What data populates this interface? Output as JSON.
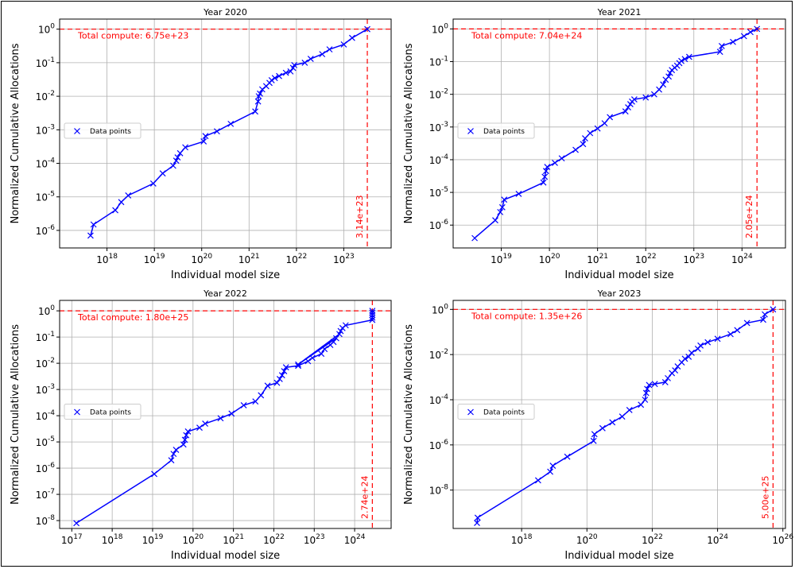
{
  "chart_data": [
    {
      "type": "line",
      "title": "Year 2020",
      "xlabel": "Individual model size",
      "ylabel": "Normalized Cumulative Allocations",
      "xscale": "log",
      "yscale": "log",
      "xlim": [
        1e+17,
        1e+24
      ],
      "ylim": [
        3e-07,
        2
      ],
      "xticks": [
        1e+18,
        1e+19,
        1e+20,
        1e+21,
        1e+22,
        1e+23
      ],
      "xtick_labels": [
        "10^18",
        "10^19",
        "10^20",
        "10^21",
        "10^22",
        "10^23"
      ],
      "yticks": [
        1e-06,
        1e-05,
        0.0001,
        0.001,
        0.01,
        0.1,
        1
      ],
      "ytick_labels": [
        "10^-6",
        "10^-5",
        "10^-4",
        "10^-3",
        "10^-2",
        "10^-1",
        "10^0"
      ],
      "grid": true,
      "legend_position": "center-left",
      "series": [
        {
          "name": "Data points",
          "color": "#0000ff",
          "marker": "x",
          "x": [
            4.5e+17,
            5.2e+17,
            1.5e+18,
            2e+18,
            2.8e+18,
            9.5e+18,
            1.5e+19,
            2.5e+19,
            2.9e+19,
            3.1e+19,
            3.5e+19,
            4.5e+19,
            1.1e+20,
            1.2e+20,
            2.1e+20,
            4.1e+20,
            1.35e+21,
            1.55e+21,
            1.6e+21,
            1.7e+21,
            1.9e+21,
            2.3e+21,
            2.7e+21,
            3e+21,
            3.5e+21,
            4.3e+21,
            6e+21,
            7.5e+21,
            8.5e+21,
            9e+21,
            1.5e+22,
            2e+22,
            3.5e+22,
            5e+22,
            1e+23,
            1.5e+23,
            3.14e+23
          ],
          "y": [
            7e-07,
            1.5e-06,
            4e-06,
            7e-06,
            1.1e-05,
            2.5e-05,
            5e-05,
            8.5e-05,
            0.00012,
            0.00015,
            0.0002,
            0.0003,
            0.00045,
            0.00065,
            0.0009,
            0.0015,
            0.0035,
            0.007,
            0.01,
            0.012,
            0.016,
            0.02,
            0.025,
            0.03,
            0.035,
            0.04,
            0.05,
            0.055,
            0.07,
            0.085,
            0.1,
            0.13,
            0.18,
            0.25,
            0.35,
            0.55,
            1
          ]
        }
      ],
      "hline": {
        "y": 1,
        "color": "#ff0000",
        "label": "Total compute: 6.75e+23"
      },
      "vline": {
        "x": 3.14e+23,
        "color": "#ff0000",
        "label": "3.14e+23"
      }
    },
    {
      "type": "line",
      "title": "Year 2021",
      "xlabel": "Individual model size",
      "ylabel": "Normalized Cumulative Allocations",
      "xscale": "log",
      "yscale": "log",
      "xlim": [
        1e+18,
        8e+24
      ],
      "ylim": [
        2e-07,
        2
      ],
      "xticks": [
        1e+19,
        1e+20,
        1e+21,
        1e+22,
        1e+23,
        1e+24
      ],
      "xtick_labels": [
        "10^19",
        "10^20",
        "10^21",
        "10^22",
        "10^23",
        "10^24"
      ],
      "yticks": [
        1e-06,
        1e-05,
        0.0001,
        0.001,
        0.01,
        0.1,
        1
      ],
      "ytick_labels": [
        "10^-6",
        "10^-5",
        "10^-4",
        "10^-3",
        "10^-2",
        "10^-1",
        "10^0"
      ],
      "grid": true,
      "legend_position": "center-left",
      "series": [
        {
          "name": "Data points",
          "color": "#0000ff",
          "marker": "x",
          "x": [
            2.8e+18,
            7.5e+18,
            9.5e+18,
            1.05e+19,
            1.15e+19,
            2.3e+19,
            7.5e+19,
            8e+19,
            8.5e+19,
            9e+19,
            1.3e+20,
            1.8e+20,
            3.5e+20,
            5e+20,
            5.5e+20,
            7e+20,
            1e+21,
            1.4e+21,
            1.8e+21,
            3.8e+21,
            4.3e+21,
            4.8e+21,
            5.2e+21,
            5.8e+21,
            1e+22,
            1.5e+22,
            1.9e+22,
            2.3e+22,
            2.6e+22,
            3e+22,
            3.2e+22,
            3.5e+22,
            4e+22,
            4.5e+22,
            5e+22,
            5.5e+22,
            6.5e+22,
            8e+22,
            3.5e+23,
            3.8e+23,
            6.5e+23,
            1.1e+24,
            1.5e+24,
            2.05e+24
          ],
          "y": [
            4e-07,
            1.4e-06,
            2.5e-06,
            3.5e-06,
            6e-06,
            9e-06,
            2e-05,
            3e-05,
            4.5e-05,
            6e-05,
            8e-05,
            0.00011,
            0.0002,
            0.0003,
            0.00045,
            0.00065,
            0.0009,
            0.0013,
            0.002,
            0.003,
            0.004,
            0.005,
            0.006,
            0.007,
            0.008,
            0.01,
            0.014,
            0.02,
            0.028,
            0.035,
            0.045,
            0.055,
            0.065,
            0.075,
            0.09,
            0.105,
            0.12,
            0.14,
            0.2,
            0.3,
            0.4,
            0.6,
            0.8,
            1
          ]
        }
      ],
      "hline": {
        "y": 1,
        "color": "#ff0000",
        "label": "Total compute: 7.04e+24"
      },
      "vline": {
        "x": 2.05e+24,
        "color": "#ff0000",
        "label": "2.05e+24"
      }
    },
    {
      "type": "line",
      "title": "Year 2022",
      "xlabel": "Individual model size",
      "ylabel": "Normalized Cumulative Allocations",
      "xscale": "log",
      "yscale": "log",
      "xlim": [
        5e+16,
        8e+24
      ],
      "ylim": [
        5e-09,
        2.5
      ],
      "xticks": [
        1e+17,
        1e+18,
        1e+19,
        1e+20,
        1e+21,
        1e+22,
        1e+23,
        1e+24
      ],
      "xtick_labels": [
        "10^17",
        "10^18",
        "10^19",
        "10^20",
        "10^21",
        "10^22",
        "10^23",
        "10^24"
      ],
      "yticks": [
        1e-08,
        1e-07,
        1e-06,
        1e-05,
        0.0001,
        0.001,
        0.01,
        0.1,
        1
      ],
      "ytick_labels": [
        "10^-8",
        "10^-7",
        "10^-6",
        "10^-5",
        "10^-4",
        "10^-3",
        "10^-2",
        "10^-1",
        "10^0"
      ],
      "grid": true,
      "legend_position": "center-left",
      "series": [
        {
          "name": "Data points",
          "color": "#0000ff",
          "marker": "x",
          "x": [
            1.3e+17,
            1.1e+19,
            2.9e+19,
            3.3e+19,
            3.8e+19,
            5.8e+19,
            6.3e+19,
            6.8e+19,
            7.5e+19,
            1.45e+20,
            2e+20,
            4.8e+20,
            9e+20,
            1.8e+21,
            3.5e+21,
            4.8e+21,
            7e+21,
            1.2e+22,
            1.4e+22,
            1.6e+22,
            1.8e+22,
            2e+22,
            4e+22,
            7e+22,
            9e+22,
            1.5e+23,
            1.8e+23,
            2.5e+23,
            3e+23,
            3.5e+23,
            4e+22,
            4.2e+23,
            4.5e+23,
            5e+23,
            6e+23,
            2.74e+24,
            2.74e+24,
            2.74e+24,
            2.74e+24,
            2.74e+24
          ],
          "y": [
            8e-09,
            6e-07,
            2e-06,
            3.5e-06,
            5e-06,
            8e-06,
            1.2e-05,
            1.8e-05,
            2.5e-05,
            3.5e-05,
            5e-05,
            8e-05,
            0.00012,
            0.00025,
            0.00035,
            0.0006,
            0.0014,
            0.0018,
            0.0025,
            0.0035,
            0.005,
            0.007,
            0.008,
            0.012,
            0.016,
            0.023,
            0.035,
            0.05,
            0.065,
            0.09,
            0.009,
            0.13,
            0.17,
            0.22,
            0.28,
            0.45,
            0.55,
            0.7,
            0.85,
            1
          ]
        }
      ],
      "hline": {
        "y": 1,
        "color": "#ff0000",
        "label": "Total compute: 1.80e+25"
      },
      "vline": {
        "x": 2.74e+24,
        "color": "#ff0000",
        "label": "2.74e+24"
      }
    },
    {
      "type": "line",
      "title": "Year 2023",
      "xlabel": "Individual model size",
      "ylabel": "Normalized Cumulative Allocations",
      "xscale": "log",
      "yscale": "log",
      "xlim": [
        8000000000000000.0,
        1.2e+26
      ],
      "ylim": [
        2e-10,
        2.5
      ],
      "xticks": [
        1e+18,
        1e+20,
        1e+22,
        1e+24,
        1e+26
      ],
      "xtick_labels": [
        "10^18",
        "10^20",
        "10^22",
        "10^24",
        "10^26"
      ],
      "yticks": [
        1e-08,
        1e-06,
        0.0001,
        0.01,
        1
      ],
      "ytick_labels": [
        "10^-8",
        "10^-6",
        "10^-4",
        "10^-2",
        "10^0"
      ],
      "grid": true,
      "legend_position": "center-left",
      "series": [
        {
          "name": "Data points",
          "color": "#0000ff",
          "marker": "x",
          "x": [
            4.3e+16,
            4.5e+16,
            3.2e+18,
            7.5e+18,
            9e+18,
            2.5e+19,
            1.6e+20,
            1.7e+20,
            3e+20,
            6e+20,
            1.2e+21,
            2e+21,
            4.5e+21,
            6e+21,
            6.5e+21,
            7e+21,
            8e+21,
            1.2e+22,
            2.5e+22,
            3e+22,
            4e+22,
            5e+22,
            6e+22,
            8e+22,
            1e+23,
            1.3e+23,
            1.6e+23,
            2.5e+23,
            3e+23,
            5e+23,
            1e+24,
            2.5e+24,
            4e+24,
            8e+24,
            2.5e+25,
            2.8e+25,
            5e+25
          ],
          "y": [
            3.5e-10,
            6e-10,
            2.7e-08,
            6.5e-08,
            1.2e-07,
            3e-07,
            1.5e-06,
            3e-06,
            5.5e-06,
            1e-05,
            1.8e-05,
            3.5e-05,
            6e-05,
            0.0001,
            0.0002,
            0.0003,
            0.00045,
            0.0005,
            0.0006,
            0.0009,
            0.0015,
            0.002,
            0.003,
            0.0045,
            0.0065,
            0.008,
            0.012,
            0.018,
            0.025,
            0.035,
            0.05,
            0.08,
            0.12,
            0.25,
            0.35,
            0.6,
            1
          ]
        }
      ],
      "hline": {
        "y": 1,
        "color": "#ff0000",
        "label": "Total compute: 1.35e+26"
      },
      "vline": {
        "x": 5e+25,
        "color": "#ff0000",
        "label": "5.00e+25"
      }
    }
  ]
}
